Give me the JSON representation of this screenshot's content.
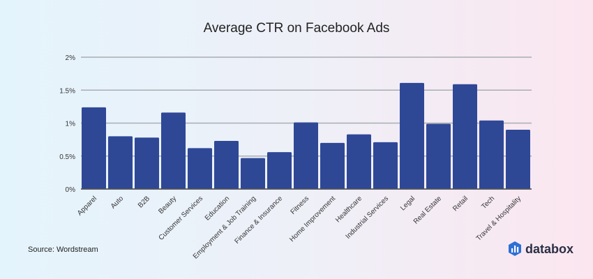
{
  "chart_data": {
    "type": "bar",
    "title": "Average CTR on Facebook Ads",
    "categories": [
      "Apparel",
      "Auto",
      "B2B",
      "Beauty",
      "Customer Services",
      "Education",
      "Employment & Job Training",
      "Finance & Insurance",
      "Fitness",
      "Home Improvement",
      "Healthcare",
      "Industrial Services",
      "Legal",
      "Real Estate",
      "Retail",
      "Tech",
      "Travel & Hospitality"
    ],
    "values": [
      1.24,
      0.8,
      0.78,
      1.16,
      0.62,
      0.73,
      0.47,
      0.56,
      1.01,
      0.7,
      0.83,
      0.71,
      1.61,
      0.99,
      1.59,
      1.04,
      0.9
    ],
    "unit": "%",
    "ylim": [
      0,
      2
    ],
    "yticks": [
      0,
      0.5,
      1,
      1.5,
      2
    ],
    "ytick_labels": [
      "0%",
      "0.5%",
      "1%",
      "1.5%",
      "2%"
    ],
    "grid": true,
    "bar_color": "#2e4896"
  },
  "source": "Source: Wordstream",
  "logo": {
    "text": "databox"
  }
}
